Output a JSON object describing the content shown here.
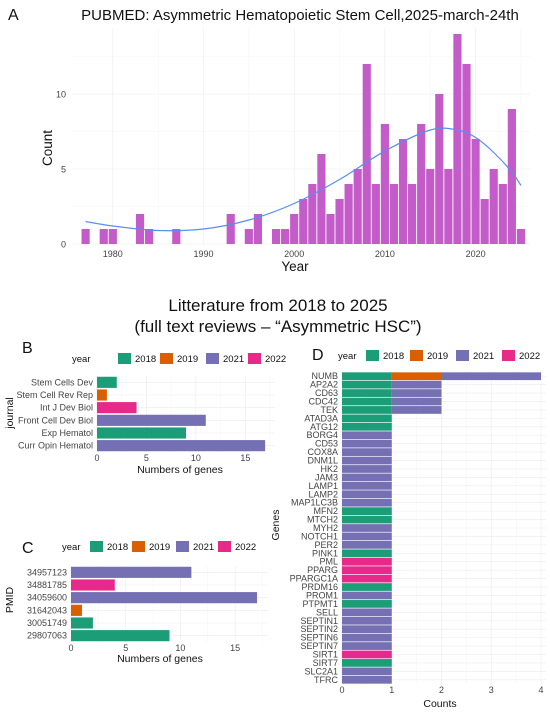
{
  "panel_labels": {
    "a": "A",
    "b": "B",
    "c": "C",
    "d": "D"
  },
  "subtitle": {
    "line1": "Litterature from 2018 to 2025",
    "line2": "(full text reviews – “Asymmetric HSC”)"
  },
  "legend": {
    "title": "year",
    "items": [
      {
        "label": "2018",
        "color": "#1b9e77"
      },
      {
        "label": "2019",
        "color": "#d95f02"
      },
      {
        "label": "2021",
        "color": "#7570b3"
      },
      {
        "label": "2022",
        "color": "#e7298a"
      }
    ]
  },
  "chart_data": [
    {
      "id": "A",
      "type": "bar",
      "title": "PUBMED: Asymmetric Hematopoietic Stem Cell,2025-march-24th",
      "xlabel": "Year",
      "ylabel": "Count",
      "xlim": [
        1975.5,
        2026
      ],
      "ylim": [
        0,
        14.4
      ],
      "xticks": [
        1980,
        1990,
        2000,
        2010,
        2020
      ],
      "yticks": [
        0,
        5,
        10
      ],
      "bar_color": "#c35bc8",
      "smooth_color": "#5b8def",
      "grid": true,
      "x": [
        1977,
        1979,
        1980,
        1983,
        1984,
        1987,
        1993,
        1995,
        1996,
        1998,
        1999,
        2000,
        2001,
        2002,
        2003,
        2004,
        2005,
        2006,
        2007,
        2008,
        2009,
        2010,
        2011,
        2012,
        2013,
        2014,
        2015,
        2016,
        2017,
        2018,
        2019,
        2020,
        2021,
        2022,
        2023,
        2024,
        2025
      ],
      "values": [
        1,
        1,
        1,
        2,
        1,
        1,
        2,
        1,
        2,
        1,
        1,
        2,
        3,
        4,
        6,
        2,
        3,
        4,
        5,
        12,
        4,
        8,
        4,
        7,
        4,
        8,
        5,
        10,
        5,
        14,
        12,
        7,
        3,
        5,
        4,
        9,
        1
      ],
      "smooth": {
        "x": [
          1977,
          1980,
          1985,
          1990,
          1995,
          2000,
          2005,
          2010,
          2015,
          2018,
          2020,
          2022,
          2024,
          2025
        ],
        "y": [
          1.5,
          1.2,
          0.9,
          1.0,
          1.6,
          2.7,
          4.3,
          6.2,
          7.6,
          7.6,
          7.1,
          6.1,
          4.8,
          3.9
        ]
      }
    },
    {
      "id": "B",
      "type": "bar",
      "orientation": "horizontal",
      "xlabel": "Numbers of genes",
      "ylabel": "journal",
      "xlim": [
        0,
        18
      ],
      "xticks": [
        0,
        5,
        10,
        15
      ],
      "categories": [
        "Stem Cells Dev",
        "Stem Cell Rev Rep",
        "Int J Dev Biol",
        "Front Cell Dev Biol",
        "Exp Hematol",
        "Curr Opin Hematol"
      ],
      "values": [
        2,
        1,
        4,
        11,
        9,
        17
      ],
      "years": [
        "2018",
        "2019",
        "2022",
        "2021",
        "2018",
        "2021"
      ]
    },
    {
      "id": "C",
      "type": "bar",
      "orientation": "horizontal",
      "xlabel": "Numbers of genes",
      "ylabel": "PMID",
      "xlim": [
        0,
        18
      ],
      "xticks": [
        0,
        5,
        10,
        15
      ],
      "categories": [
        "34957123",
        "34881785",
        "34059600",
        "31642043",
        "30051749",
        "29807063"
      ],
      "values": [
        11,
        4,
        17,
        1,
        2,
        9
      ],
      "years": [
        "2021",
        "2022",
        "2021",
        "2019",
        "2018",
        "2018"
      ]
    },
    {
      "id": "D",
      "type": "bar",
      "orientation": "horizontal",
      "stacked": true,
      "xlabel": "Counts",
      "ylabel": "Genes",
      "xlim": [
        0,
        4.1
      ],
      "xticks": [
        0,
        1,
        2,
        3,
        4
      ],
      "categories": [
        "NUMB",
        "AP2A2",
        "CD63",
        "CDC42",
        "TEK",
        "ATAD3A",
        "ATG12",
        "BORG4",
        "CD53",
        "COX8A",
        "DNM1L",
        "HK2",
        "JAM3",
        "LAMP1",
        "LAMP2",
        "MAP1LC3B",
        "MFN2",
        "MTCH2",
        "MYH2",
        "NOTCH1",
        "PER2",
        "PINK1",
        "PML",
        "PPARG",
        "PPARGC1A",
        "PRDM16",
        "PROM1",
        "PTPMT1",
        "SELL",
        "SEPTIN1",
        "SEPTIN2",
        "SEPTIN6",
        "SEPTIN7",
        "SIRT1",
        "SIRT7",
        "SLC2A1",
        "TFRC"
      ],
      "series": [
        {
          "name": "2018",
          "values": [
            1,
            1,
            1,
            1,
            1,
            1,
            1,
            0,
            0,
            0,
            0,
            0,
            0,
            0,
            0,
            0,
            1,
            1,
            0,
            0,
            0,
            1,
            0,
            0,
            0,
            1,
            0,
            1,
            0,
            0,
            0,
            0,
            0,
            0,
            1,
            0,
            0
          ]
        },
        {
          "name": "2019",
          "values": [
            1,
            0,
            0,
            0,
            0,
            0,
            0,
            0,
            0,
            0,
            0,
            0,
            0,
            0,
            0,
            0,
            0,
            0,
            0,
            0,
            0,
            0,
            0,
            0,
            0,
            0,
            0,
            0,
            0,
            0,
            0,
            0,
            0,
            0,
            0,
            0,
            0
          ]
        },
        {
          "name": "2021",
          "values": [
            2,
            1,
            1,
            1,
            1,
            0,
            0,
            1,
            1,
            1,
            1,
            1,
            1,
            1,
            1,
            1,
            0,
            0,
            1,
            1,
            1,
            0,
            0,
            0,
            0,
            0,
            1,
            0,
            1,
            1,
            1,
            1,
            1,
            0,
            0,
            1,
            1
          ]
        },
        {
          "name": "2022",
          "values": [
            0,
            0,
            0,
            0,
            0,
            0,
            0,
            0,
            0,
            0,
            0,
            0,
            0,
            0,
            0,
            0,
            0,
            0,
            0,
            0,
            0,
            0,
            1,
            1,
            1,
            0,
            0,
            0,
            0,
            0,
            0,
            0,
            0,
            1,
            0,
            0,
            0
          ]
        }
      ]
    }
  ]
}
